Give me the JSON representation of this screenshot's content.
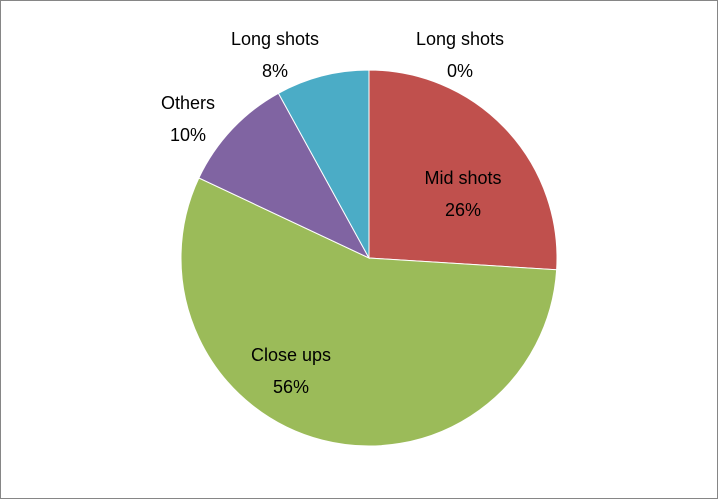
{
  "chart_data": {
    "type": "pie",
    "categories": [
      "Long shots",
      "Mid shots",
      "Close ups",
      "Others",
      "Long shots"
    ],
    "values": [
      0,
      26,
      56,
      10,
      8
    ],
    "value_labels": [
      "0%",
      "26%",
      "56%",
      "10%",
      "8%"
    ],
    "colors": [
      "#4f81bd",
      "#c0504d",
      "#9bbb59",
      "#8064a2",
      "#4bacc6"
    ]
  }
}
